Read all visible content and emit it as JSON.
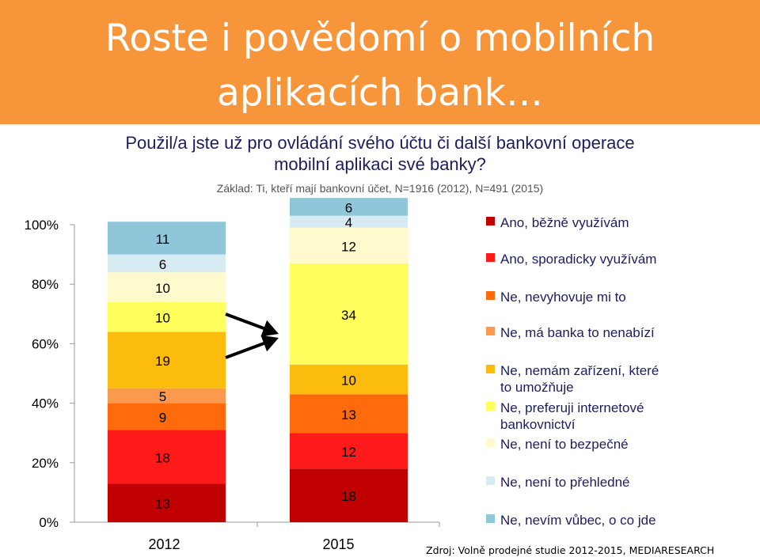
{
  "title": {
    "line1": "Roste i povědomí o mobilních",
    "line2": "aplikacích bank…"
  },
  "subtitle": "Použil/a jste už pro ovládání svého účtu či další bankovní operace mobilní aplikaci své banky?",
  "base": "Základ: Ti, kteří mají bankovní účet, N=1916 (2012), N=491 (2015)",
  "source": "Zdroj: Volně prodejné studie 2012-2015, MEDIARESEARCH",
  "chart_data": {
    "type": "bar",
    "stacked": true,
    "percent": true,
    "categories": [
      "2012",
      "2015"
    ],
    "ylim": [
      0,
      100
    ],
    "yticks": [
      "0%",
      "20%",
      "40%",
      "60%",
      "80%",
      "100%"
    ],
    "legend_position": "right",
    "series": [
      {
        "name": "Ano, běžně využívám",
        "color": "#c00000",
        "values": [
          13,
          18
        ]
      },
      {
        "name": "Ano, sporadicky využívám",
        "color": "#ff1a1a",
        "values": [
          18,
          12
        ]
      },
      {
        "name": "Ne, nevyhovuje mi to",
        "color": "#ff6a0d",
        "values": [
          9,
          13
        ]
      },
      {
        "name": "Ne, má banka to nenabízí",
        "color": "#fb9a4e",
        "values": [
          5,
          0
        ]
      },
      {
        "name": "Ne, nemám zařízení, které to umožňuje",
        "color": "#fbbc0e",
        "values": [
          19,
          10
        ]
      },
      {
        "name": "Ne, preferuji internetové bankovnictví",
        "color": "#ffff5e",
        "values": [
          10,
          34
        ]
      },
      {
        "name": "Ne, není to bezpečné",
        "color": "#fffacd",
        "values": [
          10,
          12
        ]
      },
      {
        "name": "Ne, není to přehledné",
        "color": "#d7ebf3",
        "values": [
          6,
          4
        ]
      },
      {
        "name": "Ne, nevím vůbec, o co jde",
        "color": "#8fc6d9",
        "values": [
          11,
          6
        ]
      }
    ]
  }
}
